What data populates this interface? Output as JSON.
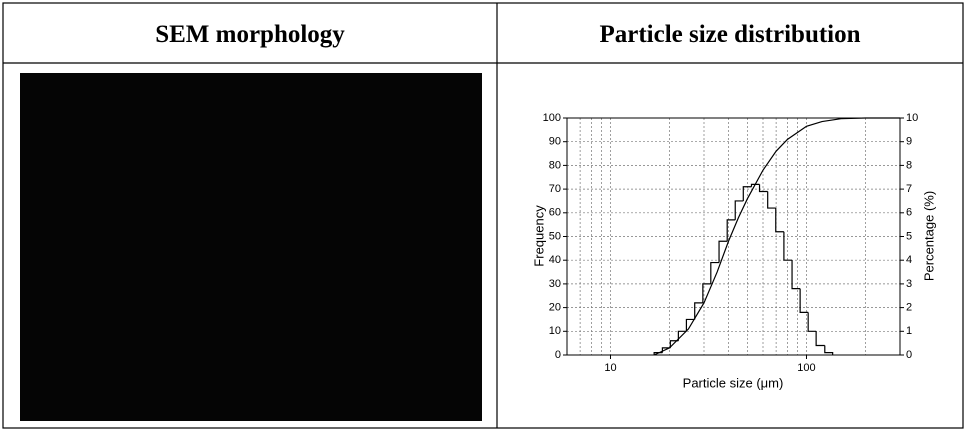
{
  "table": {
    "headers": [
      "SEM morphology",
      "Particle size distribution"
    ]
  },
  "chart_data": {
    "type": "histogram",
    "xlabel": "Particle size (μm)",
    "ylabel": "Frequency",
    "y2label": "Percentage (%)",
    "xscale": "log",
    "xlim": [
      6,
      300
    ],
    "xticks": [
      10,
      100
    ],
    "minor_xticks": [
      6,
      7,
      8,
      9,
      20,
      30,
      40,
      50,
      60,
      70,
      80,
      90,
      200,
      300
    ],
    "ylim": [
      0,
      100
    ],
    "yticks": [
      0,
      10,
      20,
      30,
      40,
      50,
      60,
      70,
      80,
      90,
      100
    ],
    "y2lim": [
      0,
      10
    ],
    "y2ticks": [
      0,
      1,
      2,
      3,
      4,
      5,
      6,
      7,
      8,
      9,
      10
    ],
    "grid": true,
    "series": [
      {
        "type": "histogram",
        "axis": "y2",
        "color": "#000000",
        "bins": [
          16.7,
          18.4,
          20.2,
          22.2,
          24.4,
          26.9,
          29.6,
          32.5,
          35.8,
          39.4,
          43.3,
          47.6,
          52.4,
          57.6,
          63.4,
          69.7,
          76.7,
          84.4,
          92.8,
          102,
          112,
          124,
          136
        ],
        "values": [
          0.1,
          0.3,
          0.6,
          1.0,
          1.5,
          2.2,
          3.0,
          3.9,
          4.8,
          5.7,
          6.5,
          7.1,
          7.2,
          6.9,
          6.2,
          5.2,
          4.0,
          2.8,
          1.8,
          1.0,
          0.4,
          0.1
        ]
      },
      {
        "type": "line",
        "color": "#000000",
        "x": [
          16.7,
          20,
          25,
          30,
          35,
          40,
          45,
          50,
          60,
          70,
          80,
          100,
          120,
          150,
          200,
          300
        ],
        "values": [
          0,
          3,
          11,
          22,
          35,
          48,
          58,
          66,
          78,
          86,
          91,
          96.5,
          98.5,
          99.7,
          100,
          100
        ]
      }
    ]
  }
}
